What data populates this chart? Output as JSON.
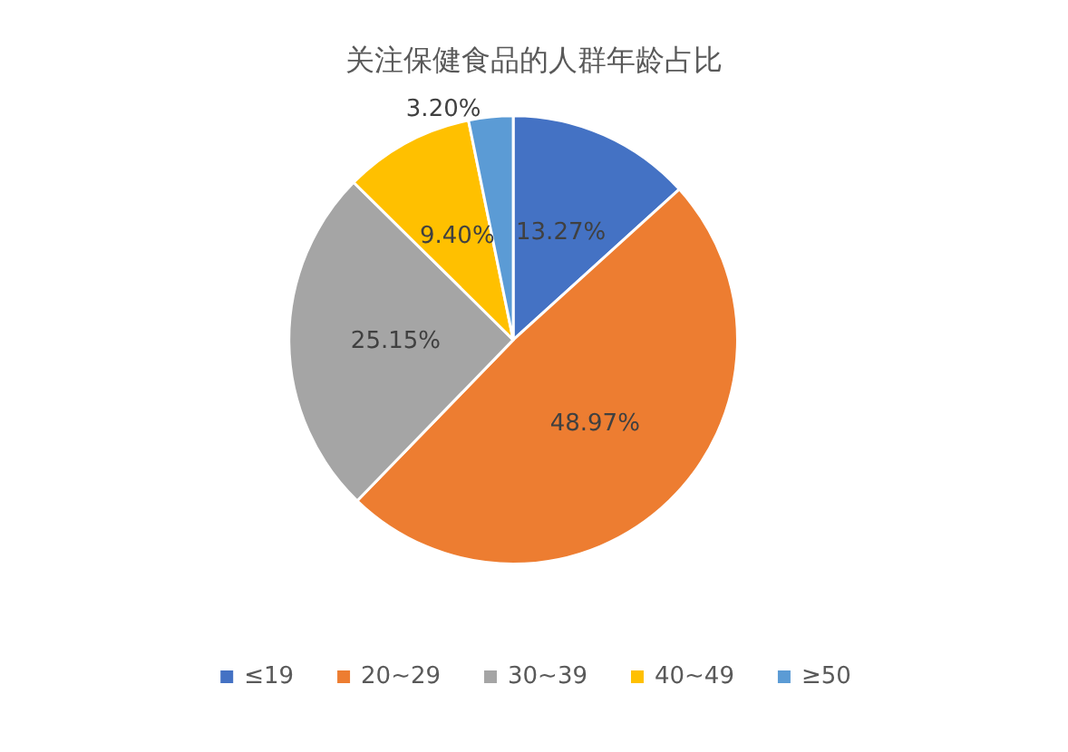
{
  "chart_data": {
    "type": "pie",
    "title": "关注保健食品的人群年龄占比",
    "categories": [
      "≤19",
      "20~29",
      "30~39",
      "40~49",
      "≥50"
    ],
    "values": [
      13.27,
      48.97,
      25.15,
      9.4,
      3.2
    ],
    "colors": [
      "#4472c4",
      "#ed7d31",
      "#a5a5a5",
      "#ffc000",
      "#5b9bd5"
    ],
    "value_labels": [
      "13.27%",
      "48.97%",
      "25.15%",
      "9.40%",
      "3.20%"
    ],
    "legend": "bottom"
  }
}
